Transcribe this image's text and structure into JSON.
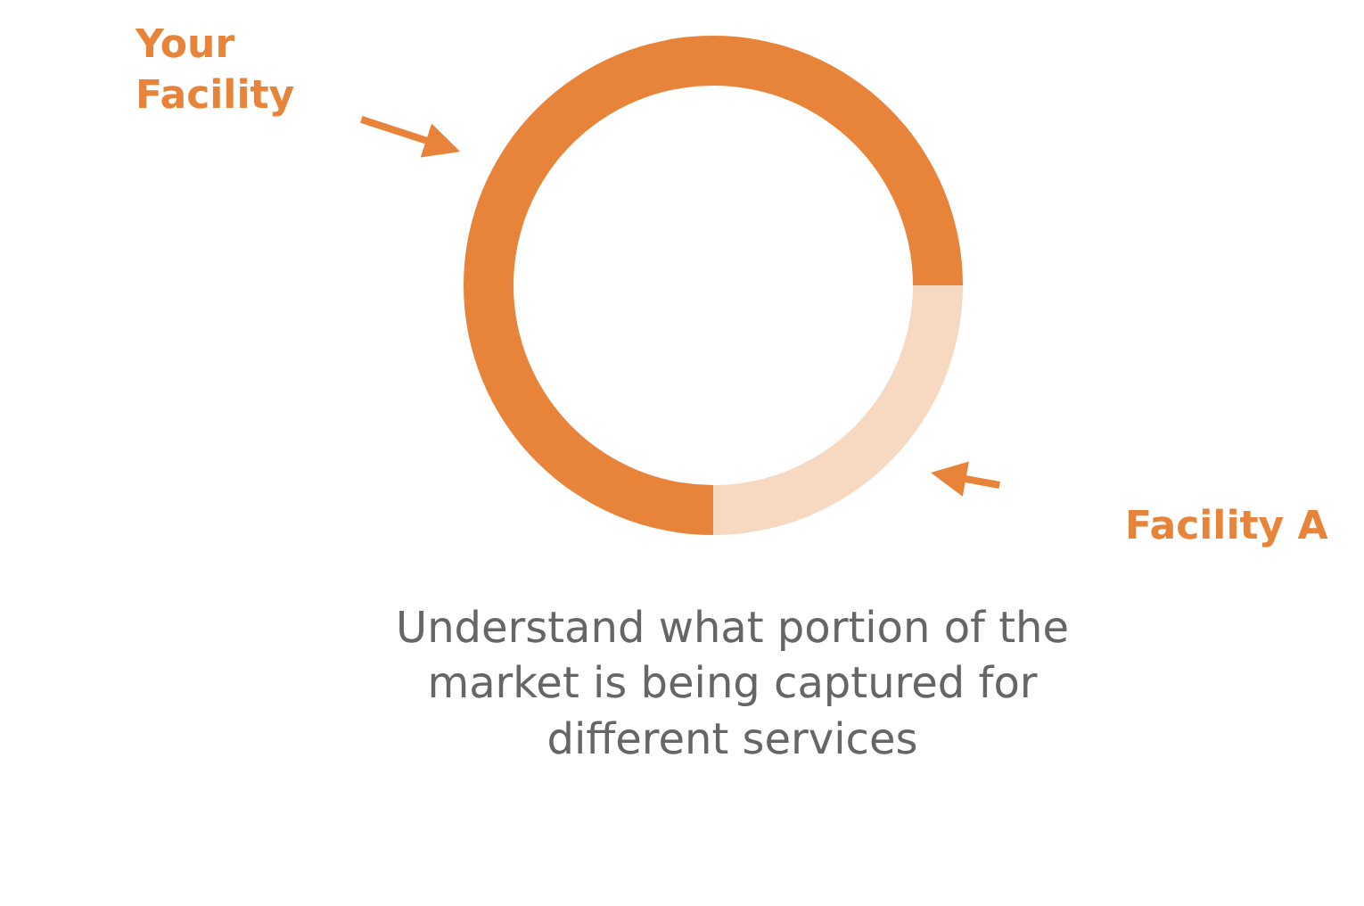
{
  "chart_data": {
    "type": "donut",
    "categories": [
      "Your Facility",
      "Facility A"
    ],
    "values": [
      75,
      25
    ],
    "colors": [
      "#e8833a",
      "#f7d8c1"
    ],
    "legend": false,
    "annotations": [
      "Understand what portion of the market is being captured for different services"
    ]
  }
}
